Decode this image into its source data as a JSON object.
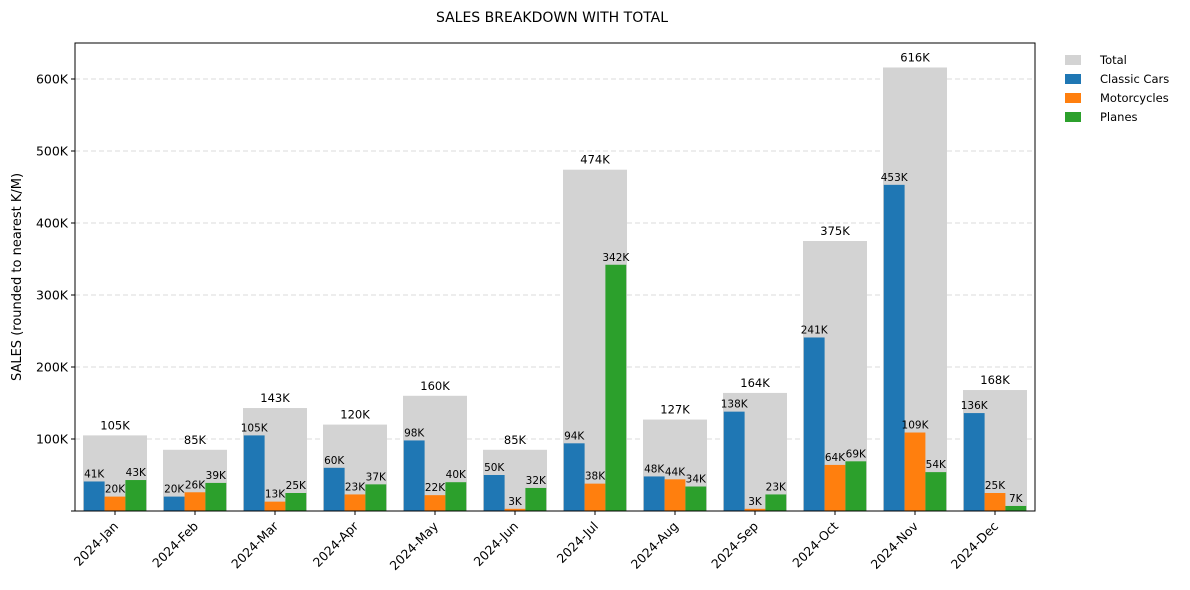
{
  "chart_data": {
    "type": "bar",
    "title": "SALES BREAKDOWN WITH TOTAL",
    "xlabel": "",
    "ylabel": "SALES (rounded to nearest K/M)",
    "ylim": [
      0,
      650000
    ],
    "yticks": [
      0,
      100000,
      200000,
      300000,
      400000,
      500000,
      600000
    ],
    "ytick_labels": [
      "",
      "100K",
      "200K",
      "300K",
      "400K",
      "500K",
      "600K"
    ],
    "grid": "y, dashed",
    "legend_position": "outside top-right",
    "categories": [
      "2024-Jan",
      "2024-Feb",
      "2024-Mar",
      "2024-Apr",
      "2024-May",
      "2024-Jun",
      "2024-Jul",
      "2024-Aug",
      "2024-Sep",
      "2024-Oct",
      "2024-Nov",
      "2024-Dec"
    ],
    "total": {
      "name": "Total",
      "color": "#d3d3d3",
      "values": [
        105000,
        85000,
        143000,
        120000,
        160000,
        85000,
        474000,
        127000,
        164000,
        375000,
        616000,
        168000
      ],
      "labels": [
        "105K",
        "85K",
        "143K",
        "120K",
        "160K",
        "85K",
        "474K",
        "127K",
        "164K",
        "375K",
        "616K",
        "168K"
      ]
    },
    "series": [
      {
        "name": "Classic Cars",
        "color": "#1f77b4",
        "values": [
          41000,
          20000,
          105000,
          60000,
          98000,
          50000,
          94000,
          48000,
          138000,
          241000,
          453000,
          136000
        ],
        "labels": [
          "41K",
          "20K",
          "105K",
          "60K",
          "98K",
          "50K",
          "94K",
          "48K",
          "138K",
          "241K",
          "453K",
          "136K"
        ]
      },
      {
        "name": "Motorcycles",
        "color": "#ff7f0e",
        "values": [
          20000,
          26000,
          13000,
          23000,
          22000,
          3000,
          38000,
          44000,
          3000,
          64000,
          109000,
          25000
        ],
        "labels": [
          "20K",
          "26K",
          "13K",
          "23K",
          "22K",
          "3K",
          "38K",
          "44K",
          "3K",
          "64K",
          "109K",
          "25K"
        ]
      },
      {
        "name": "Planes",
        "color": "#2ca02c",
        "values": [
          43000,
          39000,
          25000,
          37000,
          40000,
          32000,
          342000,
          34000,
          23000,
          69000,
          54000,
          7000
        ],
        "labels": [
          "43K",
          "39K",
          "25K",
          "37K",
          "40K",
          "32K",
          "342K",
          "34K",
          "23K",
          "69K",
          "54K",
          "7K"
        ]
      }
    ]
  }
}
